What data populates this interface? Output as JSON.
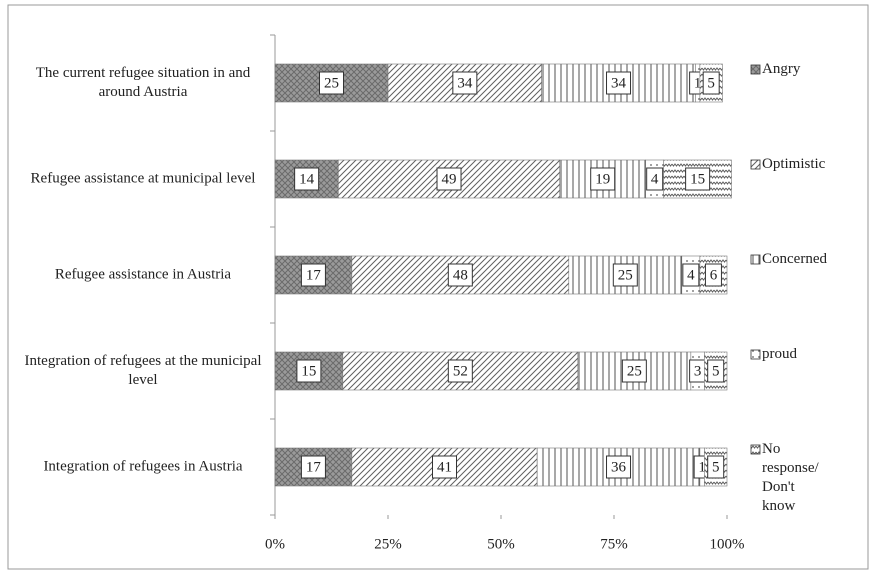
{
  "chart_data": {
    "type": "stacked-bar-horizontal",
    "categories": [
      "The current refugee situation in and around Austria",
      "Refugee assistance at municipal level",
      "Refugee assistance in Austria",
      "Integration of refugees at the municipal level",
      "Integration of refugees in Austria"
    ],
    "series": [
      {
        "name": "Angry",
        "color": "#6a6a6a",
        "pattern": "crosshatch",
        "values": [
          25,
          14,
          17,
          15,
          17
        ]
      },
      {
        "name": "Optimistic",
        "color": "#606060",
        "pattern": "diagonal",
        "values": [
          34,
          49,
          48,
          52,
          41
        ]
      },
      {
        "name": "Concerned",
        "color": "#505050",
        "pattern": "vertical",
        "values": [
          34,
          19,
          25,
          25,
          36
        ]
      },
      {
        "name": "proud",
        "color": "#606060",
        "pattern": "dots",
        "values": [
          1,
          4,
          4,
          3,
          1
        ]
      },
      {
        "name": "No response/ Don't know",
        "color": "#606060",
        "pattern": "wave",
        "values": [
          5,
          15,
          6,
          5,
          5
        ]
      }
    ],
    "xlim": [
      0,
      100
    ],
    "xticks": [
      {
        "value": 0,
        "label": "0%"
      },
      {
        "value": 25,
        "label": "25%"
      },
      {
        "value": 50,
        "label": "50%"
      },
      {
        "value": 75,
        "label": "75%"
      },
      {
        "value": 100,
        "label": "100%"
      }
    ],
    "legend": "right"
  }
}
